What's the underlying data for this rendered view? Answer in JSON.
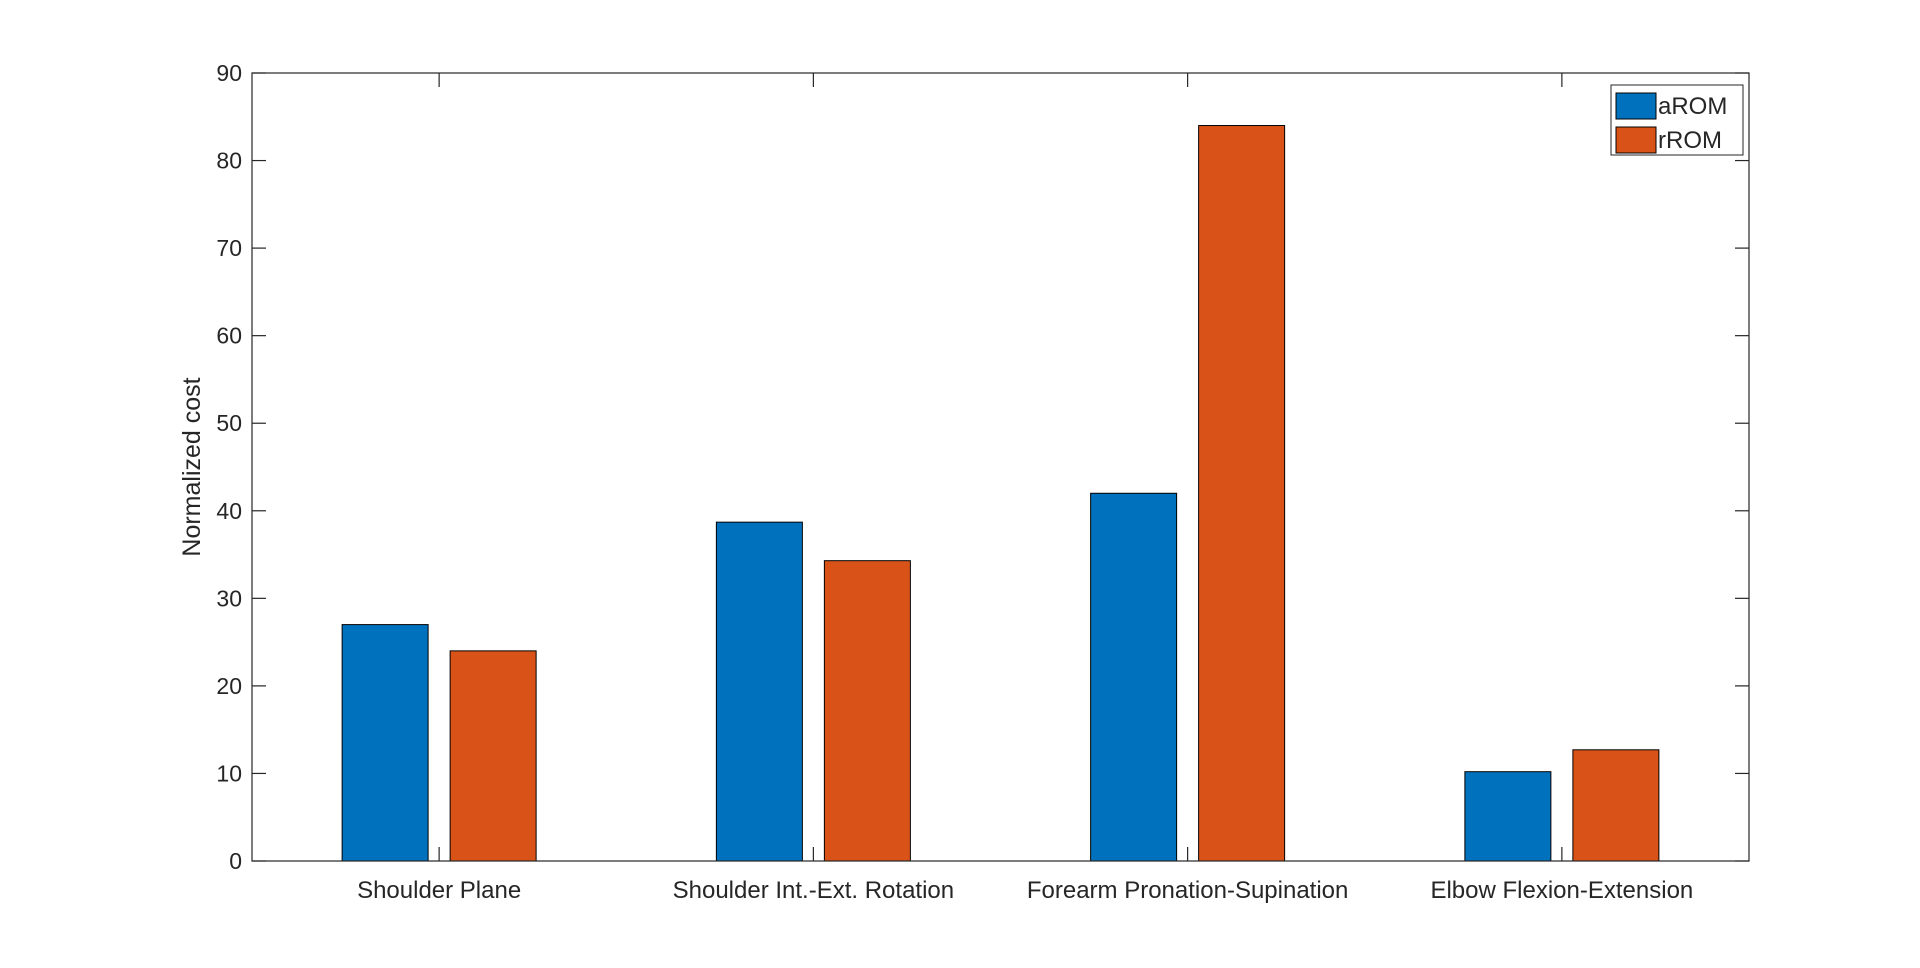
{
  "chart_data": {
    "type": "bar",
    "title": "",
    "xlabel": "",
    "ylabel": "Normalized cost",
    "ylim": [
      0,
      90
    ],
    "yticks": [
      0,
      10,
      20,
      30,
      40,
      50,
      60,
      70,
      80,
      90
    ],
    "grid": false,
    "legend_position": "top-right",
    "categories": [
      "Shoulder Plane",
      "Shoulder Int.-Ext. Rotation",
      "Forearm Pronation-Supination",
      "Elbow Flexion-Extension"
    ],
    "series": [
      {
        "name": "aROM",
        "color": "#0072BD",
        "values": [
          27,
          38.7,
          42,
          10.2
        ]
      },
      {
        "name": "rROM",
        "color": "#D95319",
        "values": [
          24,
          34.3,
          84,
          12.7
        ]
      }
    ]
  }
}
